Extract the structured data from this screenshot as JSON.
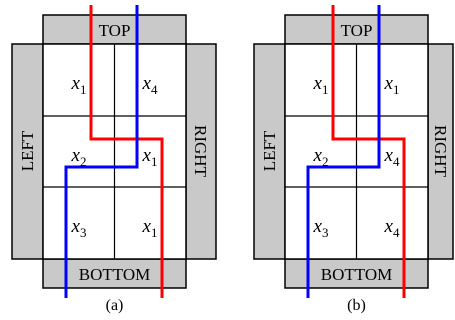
{
  "diagrams": [
    {
      "caption": "(a)",
      "sides": {
        "top": "TOP",
        "bottom": "BOTTOM",
        "left": "LEFT",
        "right": "RIGHT"
      },
      "cells": [
        {
          "var": "x",
          "sub": "1"
        },
        {
          "var": "x",
          "sub": "4"
        },
        {
          "var": "x",
          "sub": "2"
        },
        {
          "var": "x",
          "sub": "1"
        },
        {
          "var": "x",
          "sub": "3"
        },
        {
          "var": "x",
          "sub": "1"
        }
      ],
      "wires": {
        "red": "#ff0000",
        "blue": "#0000ff"
      }
    },
    {
      "caption": "(b)",
      "sides": {
        "top": "TOP",
        "bottom": "BOTTOM",
        "left": "LEFT",
        "right": "RIGHT"
      },
      "cells": [
        {
          "var": "x",
          "sub": "1"
        },
        {
          "var": "x",
          "sub": "1"
        },
        {
          "var": "x",
          "sub": "2"
        },
        {
          "var": "x",
          "sub": "4"
        },
        {
          "var": "x",
          "sub": "3"
        },
        {
          "var": "x",
          "sub": "4"
        }
      ],
      "wires": {
        "red": "#ff0000",
        "blue": "#0000ff"
      }
    }
  ],
  "colors": {
    "side_fill": "#c9c9c9",
    "stroke": "#000000"
  }
}
